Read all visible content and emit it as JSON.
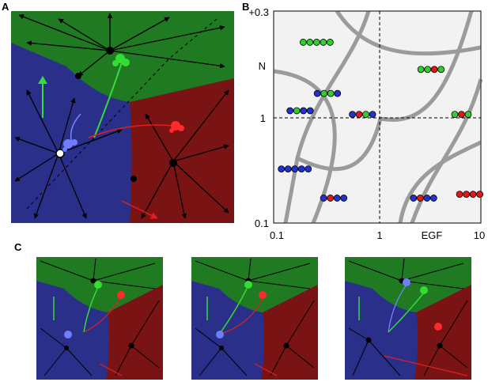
{
  "labels": {
    "a": "A",
    "b": "B",
    "c": "C"
  },
  "panel_b": {
    "y_ticks": [
      "+0.3",
      "N",
      "1",
      "0.1"
    ],
    "x_ticks": [
      "0.1",
      "1",
      "EGF",
      "10"
    ],
    "markers": [
      {
        "x": 0.26,
        "y": 0.55,
        "colors": [
          "green",
          "green",
          "green",
          "green",
          "green"
        ]
      },
      {
        "x": 0.33,
        "y": 1.25,
        "colors": [
          "blue",
          "green",
          "green",
          "blue"
        ]
      },
      {
        "x": 0.18,
        "y": 1.65,
        "colors": [
          "blue",
          "green",
          "blue",
          "blue"
        ]
      },
      {
        "x": 0.16,
        "y": 4.2,
        "colors": [
          "blue",
          "blue",
          "blue",
          "blue",
          "blue"
        ]
      },
      {
        "x": 0.38,
        "y": 6.7,
        "colors": [
          "blue",
          "red",
          "blue",
          "blue"
        ]
      },
      {
        "x": 0.72,
        "y": 1.75,
        "colors": [
          "blue",
          "red",
          "green",
          "blue"
        ]
      },
      {
        "x": 3.3,
        "y": 0.85,
        "colors": [
          "green",
          "green",
          "red",
          "green"
        ]
      },
      {
        "x": 6.5,
        "y": 1.75,
        "colors": [
          "green",
          "red",
          "green"
        ]
      },
      {
        "x": 2.8,
        "y": 6.7,
        "colors": [
          "blue",
          "red",
          "blue",
          "blue"
        ]
      },
      {
        "x": 7.8,
        "y": 6.3,
        "colors": [
          "red",
          "red",
          "red",
          "red"
        ]
      }
    ]
  },
  "colors": {
    "blue_region": "#2a2f8a",
    "red_region": "#7a1414",
    "green_region": "#1f7a22",
    "cell_blue": "#2233cc",
    "cell_red": "#e01818",
    "cell_green": "#33cc33"
  }
}
